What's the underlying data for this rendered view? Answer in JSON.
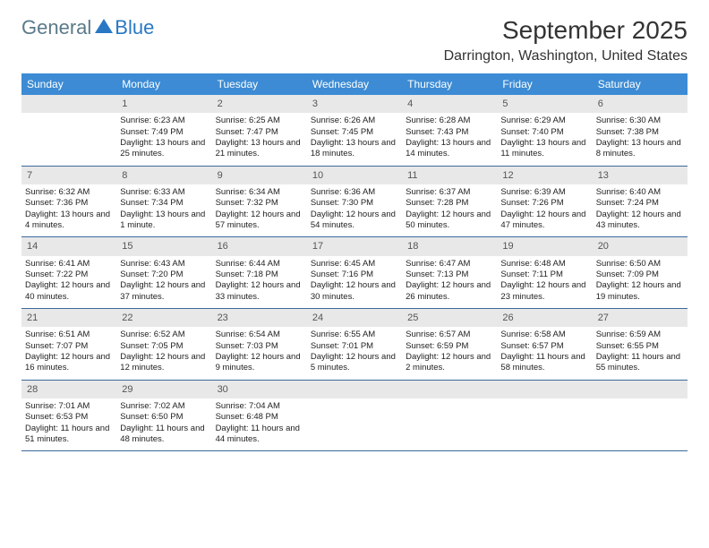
{
  "logo": {
    "text1": "General",
    "text2": "Blue"
  },
  "title": "September 2025",
  "location": "Darrington, Washington, United States",
  "colors": {
    "header_bg": "#3c8bd4",
    "header_text": "#ffffff",
    "daynum_bg": "#e8e8e8",
    "border": "#3c6a9a",
    "logo_gray": "#5a7a8a",
    "logo_blue": "#2a78c4"
  },
  "dayHeaders": [
    "Sunday",
    "Monday",
    "Tuesday",
    "Wednesday",
    "Thursday",
    "Friday",
    "Saturday"
  ],
  "weeks": [
    [
      {
        "n": "",
        "sunrise": "",
        "sunset": "",
        "daylight": ""
      },
      {
        "n": "1",
        "sunrise": "Sunrise: 6:23 AM",
        "sunset": "Sunset: 7:49 PM",
        "daylight": "Daylight: 13 hours and 25 minutes."
      },
      {
        "n": "2",
        "sunrise": "Sunrise: 6:25 AM",
        "sunset": "Sunset: 7:47 PM",
        "daylight": "Daylight: 13 hours and 21 minutes."
      },
      {
        "n": "3",
        "sunrise": "Sunrise: 6:26 AM",
        "sunset": "Sunset: 7:45 PM",
        "daylight": "Daylight: 13 hours and 18 minutes."
      },
      {
        "n": "4",
        "sunrise": "Sunrise: 6:28 AM",
        "sunset": "Sunset: 7:43 PM",
        "daylight": "Daylight: 13 hours and 14 minutes."
      },
      {
        "n": "5",
        "sunrise": "Sunrise: 6:29 AM",
        "sunset": "Sunset: 7:40 PM",
        "daylight": "Daylight: 13 hours and 11 minutes."
      },
      {
        "n": "6",
        "sunrise": "Sunrise: 6:30 AM",
        "sunset": "Sunset: 7:38 PM",
        "daylight": "Daylight: 13 hours and 8 minutes."
      }
    ],
    [
      {
        "n": "7",
        "sunrise": "Sunrise: 6:32 AM",
        "sunset": "Sunset: 7:36 PM",
        "daylight": "Daylight: 13 hours and 4 minutes."
      },
      {
        "n": "8",
        "sunrise": "Sunrise: 6:33 AM",
        "sunset": "Sunset: 7:34 PM",
        "daylight": "Daylight: 13 hours and 1 minute."
      },
      {
        "n": "9",
        "sunrise": "Sunrise: 6:34 AM",
        "sunset": "Sunset: 7:32 PM",
        "daylight": "Daylight: 12 hours and 57 minutes."
      },
      {
        "n": "10",
        "sunrise": "Sunrise: 6:36 AM",
        "sunset": "Sunset: 7:30 PM",
        "daylight": "Daylight: 12 hours and 54 minutes."
      },
      {
        "n": "11",
        "sunrise": "Sunrise: 6:37 AM",
        "sunset": "Sunset: 7:28 PM",
        "daylight": "Daylight: 12 hours and 50 minutes."
      },
      {
        "n": "12",
        "sunrise": "Sunrise: 6:39 AM",
        "sunset": "Sunset: 7:26 PM",
        "daylight": "Daylight: 12 hours and 47 minutes."
      },
      {
        "n": "13",
        "sunrise": "Sunrise: 6:40 AM",
        "sunset": "Sunset: 7:24 PM",
        "daylight": "Daylight: 12 hours and 43 minutes."
      }
    ],
    [
      {
        "n": "14",
        "sunrise": "Sunrise: 6:41 AM",
        "sunset": "Sunset: 7:22 PM",
        "daylight": "Daylight: 12 hours and 40 minutes."
      },
      {
        "n": "15",
        "sunrise": "Sunrise: 6:43 AM",
        "sunset": "Sunset: 7:20 PM",
        "daylight": "Daylight: 12 hours and 37 minutes."
      },
      {
        "n": "16",
        "sunrise": "Sunrise: 6:44 AM",
        "sunset": "Sunset: 7:18 PM",
        "daylight": "Daylight: 12 hours and 33 minutes."
      },
      {
        "n": "17",
        "sunrise": "Sunrise: 6:45 AM",
        "sunset": "Sunset: 7:16 PM",
        "daylight": "Daylight: 12 hours and 30 minutes."
      },
      {
        "n": "18",
        "sunrise": "Sunrise: 6:47 AM",
        "sunset": "Sunset: 7:13 PM",
        "daylight": "Daylight: 12 hours and 26 minutes."
      },
      {
        "n": "19",
        "sunrise": "Sunrise: 6:48 AM",
        "sunset": "Sunset: 7:11 PM",
        "daylight": "Daylight: 12 hours and 23 minutes."
      },
      {
        "n": "20",
        "sunrise": "Sunrise: 6:50 AM",
        "sunset": "Sunset: 7:09 PM",
        "daylight": "Daylight: 12 hours and 19 minutes."
      }
    ],
    [
      {
        "n": "21",
        "sunrise": "Sunrise: 6:51 AM",
        "sunset": "Sunset: 7:07 PM",
        "daylight": "Daylight: 12 hours and 16 minutes."
      },
      {
        "n": "22",
        "sunrise": "Sunrise: 6:52 AM",
        "sunset": "Sunset: 7:05 PM",
        "daylight": "Daylight: 12 hours and 12 minutes."
      },
      {
        "n": "23",
        "sunrise": "Sunrise: 6:54 AM",
        "sunset": "Sunset: 7:03 PM",
        "daylight": "Daylight: 12 hours and 9 minutes."
      },
      {
        "n": "24",
        "sunrise": "Sunrise: 6:55 AM",
        "sunset": "Sunset: 7:01 PM",
        "daylight": "Daylight: 12 hours and 5 minutes."
      },
      {
        "n": "25",
        "sunrise": "Sunrise: 6:57 AM",
        "sunset": "Sunset: 6:59 PM",
        "daylight": "Daylight: 12 hours and 2 minutes."
      },
      {
        "n": "26",
        "sunrise": "Sunrise: 6:58 AM",
        "sunset": "Sunset: 6:57 PM",
        "daylight": "Daylight: 11 hours and 58 minutes."
      },
      {
        "n": "27",
        "sunrise": "Sunrise: 6:59 AM",
        "sunset": "Sunset: 6:55 PM",
        "daylight": "Daylight: 11 hours and 55 minutes."
      }
    ],
    [
      {
        "n": "28",
        "sunrise": "Sunrise: 7:01 AM",
        "sunset": "Sunset: 6:53 PM",
        "daylight": "Daylight: 11 hours and 51 minutes."
      },
      {
        "n": "29",
        "sunrise": "Sunrise: 7:02 AM",
        "sunset": "Sunset: 6:50 PM",
        "daylight": "Daylight: 11 hours and 48 minutes."
      },
      {
        "n": "30",
        "sunrise": "Sunrise: 7:04 AM",
        "sunset": "Sunset: 6:48 PM",
        "daylight": "Daylight: 11 hours and 44 minutes."
      },
      {
        "n": "",
        "sunrise": "",
        "sunset": "",
        "daylight": ""
      },
      {
        "n": "",
        "sunrise": "",
        "sunset": "",
        "daylight": ""
      },
      {
        "n": "",
        "sunrise": "",
        "sunset": "",
        "daylight": ""
      },
      {
        "n": "",
        "sunrise": "",
        "sunset": "",
        "daylight": ""
      }
    ]
  ]
}
